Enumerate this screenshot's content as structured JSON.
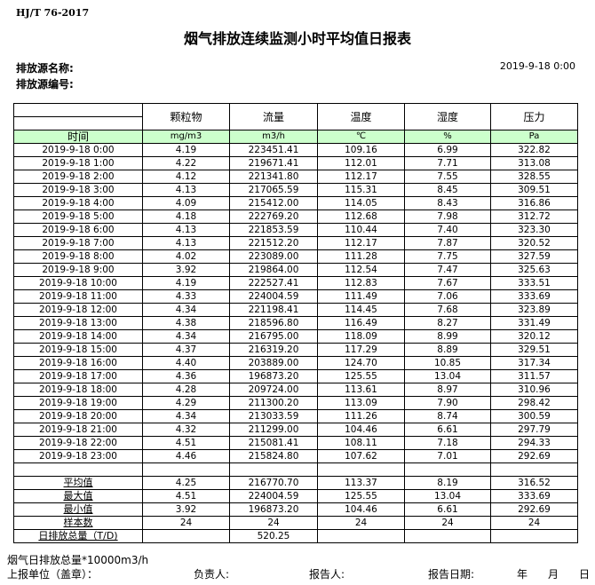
{
  "header": {
    "standard": "HJ/T  76-2017",
    "title": "烟气排放连续监测小时平均值日报表",
    "source_name_label": "排放源名称:",
    "source_no_label": "排放源编号:",
    "report_datetime": "2019-9-18  0:00"
  },
  "columns": [
    "颗粒物",
    "流量",
    "温度",
    "湿度",
    "压力"
  ],
  "units": {
    "time_label": "时间",
    "values": [
      "mg/m3",
      "m3/h",
      "℃",
      "%",
      "Pa"
    ]
  },
  "rows": [
    [
      "2019-9-18 0:00",
      "4.19",
      "223451.41",
      "109.16",
      "6.99",
      "322.82"
    ],
    [
      "2019-9-18 1:00",
      "4.22",
      "219671.41",
      "112.01",
      "7.71",
      "313.08"
    ],
    [
      "2019-9-18 2:00",
      "4.12",
      "221341.80",
      "112.17",
      "7.55",
      "328.55"
    ],
    [
      "2019-9-18 3:00",
      "4.13",
      "217065.59",
      "115.31",
      "8.45",
      "309.51"
    ],
    [
      "2019-9-18 4:00",
      "4.09",
      "215412.00",
      "114.05",
      "8.43",
      "316.86"
    ],
    [
      "2019-9-18 5:00",
      "4.18",
      "222769.20",
      "112.68",
      "7.98",
      "312.72"
    ],
    [
      "2019-9-18 6:00",
      "4.13",
      "221853.59",
      "110.44",
      "7.40",
      "323.30"
    ],
    [
      "2019-9-18 7:00",
      "4.13",
      "221512.20",
      "112.17",
      "7.87",
      "320.52"
    ],
    [
      "2019-9-18 8:00",
      "4.02",
      "223089.00",
      "111.28",
      "7.75",
      "327.59"
    ],
    [
      "2019-9-18 9:00",
      "3.92",
      "219864.00",
      "112.54",
      "7.47",
      "325.63"
    ],
    [
      "2019-9-18 10:00",
      "4.19",
      "222527.41",
      "112.83",
      "7.67",
      "333.51"
    ],
    [
      "2019-9-18 11:00",
      "4.33",
      "224004.59",
      "111.49",
      "7.06",
      "333.69"
    ],
    [
      "2019-9-18 12:00",
      "4.34",
      "221198.41",
      "114.45",
      "7.68",
      "323.89"
    ],
    [
      "2019-9-18 13:00",
      "4.38",
      "218596.80",
      "116.49",
      "8.27",
      "331.49"
    ],
    [
      "2019-9-18 14:00",
      "4.34",
      "216795.00",
      "118.09",
      "8.99",
      "320.12"
    ],
    [
      "2019-9-18 15:00",
      "4.37",
      "216319.20",
      "117.29",
      "8.89",
      "329.51"
    ],
    [
      "2019-9-18 16:00",
      "4.40",
      "203889.00",
      "124.70",
      "10.85",
      "317.34"
    ],
    [
      "2019-9-18 17:00",
      "4.36",
      "196873.20",
      "125.55",
      "13.04",
      "311.57"
    ],
    [
      "2019-9-18 18:00",
      "4.28",
      "209724.00",
      "113.61",
      "8.97",
      "310.96"
    ],
    [
      "2019-9-18 19:00",
      "4.29",
      "211300.20",
      "113.09",
      "7.90",
      "298.42"
    ],
    [
      "2019-9-18 20:00",
      "4.34",
      "213033.59",
      "111.26",
      "8.74",
      "300.59"
    ],
    [
      "2019-9-18 21:00",
      "4.32",
      "211299.00",
      "104.46",
      "6.61",
      "297.79"
    ],
    [
      "2019-9-18 22:00",
      "4.51",
      "215081.41",
      "108.11",
      "7.18",
      "294.33"
    ],
    [
      "2019-9-18 23:00",
      "4.46",
      "215824.80",
      "107.62",
      "7.01",
      "292.69"
    ]
  ],
  "stats": [
    [
      "平均值",
      "4.25",
      "216770.70",
      "113.37",
      "8.19",
      "316.52"
    ],
    [
      "最大值",
      "4.51",
      "224004.59",
      "125.55",
      "13.04",
      "333.69"
    ],
    [
      "最小值",
      "3.92",
      "196873.20",
      "104.46",
      "6.61",
      "292.69"
    ],
    [
      "样本数",
      "24",
      "24",
      "24",
      "24",
      "24"
    ],
    [
      "日排放总量（T/D)",
      "",
      "520.25",
      "",
      "",
      ""
    ]
  ],
  "footer": {
    "note": "烟气日排放总量*10000m3/h",
    "unit_label": "上报单位（盖章）：",
    "person_label": "负责人:",
    "reporter_label": "报告人:",
    "date_label": "报告日期:",
    "year": "年",
    "month": "月",
    "day": "日"
  }
}
